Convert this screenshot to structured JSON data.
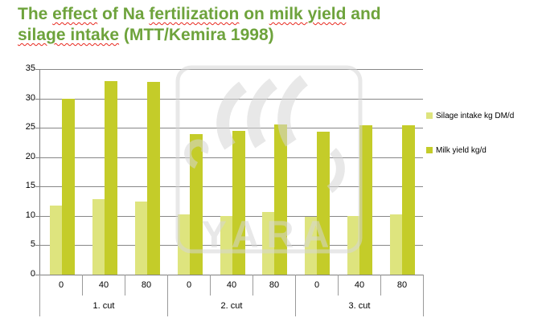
{
  "title": {
    "lines": [
      [
        {
          "t": "The "
        },
        {
          "t": "effect",
          "w": true
        },
        {
          "t": " of Na "
        },
        {
          "t": "fertilization",
          "w": true
        },
        {
          "t": " on "
        },
        {
          "t": "milk yield",
          "w": true
        },
        {
          "t": " and"
        }
      ],
      [
        {
          "t": "silage intake",
          "w": true
        },
        {
          "t": " (MTT/Kemira 1998)"
        }
      ]
    ],
    "color": "#6ea33c"
  },
  "watermark": {
    "text": "YARA",
    "color": "rgba(213,213,213,0.55)"
  },
  "colors": {
    "silage_bar": "#dee47e",
    "milk_bar": "#c4cc29",
    "gridline": "#878787",
    "axis": "#808080",
    "title_green": "#6ea33c",
    "spellcheck_red": "#e8281e"
  },
  "chart_data": {
    "type": "bar",
    "groups": [
      "1. cut",
      "2. cut",
      "3. cut"
    ],
    "categories_per_group": [
      "0",
      "40",
      "80"
    ],
    "categories": [
      "1.cut 0",
      "1.cut 40",
      "1.cut 80",
      "2.cut 0",
      "2.cut 40",
      "2.cut 80",
      "3.cut 0",
      "3.cut 40",
      "3.cut 80"
    ],
    "series": [
      {
        "name": "Silage intake kg DM/d",
        "color": "#dee47e",
        "values": [
          11.7,
          12.8,
          12.5,
          10.2,
          10.0,
          10.7,
          9.8,
          10.0,
          10.2
        ]
      },
      {
        "name": "Milk yield kg/d",
        "color": "#c4cc29",
        "values": [
          30.0,
          33.0,
          32.8,
          23.9,
          24.5,
          25.6,
          24.4,
          25.5,
          25.5
        ]
      }
    ],
    "ylim": [
      0,
      35
    ],
    "ytick_step": 5,
    "yticks": [
      0,
      5,
      10,
      15,
      20,
      25,
      30,
      35
    ],
    "grid": true,
    "legend_position": "right",
    "xlabel": "",
    "ylabel": ""
  }
}
